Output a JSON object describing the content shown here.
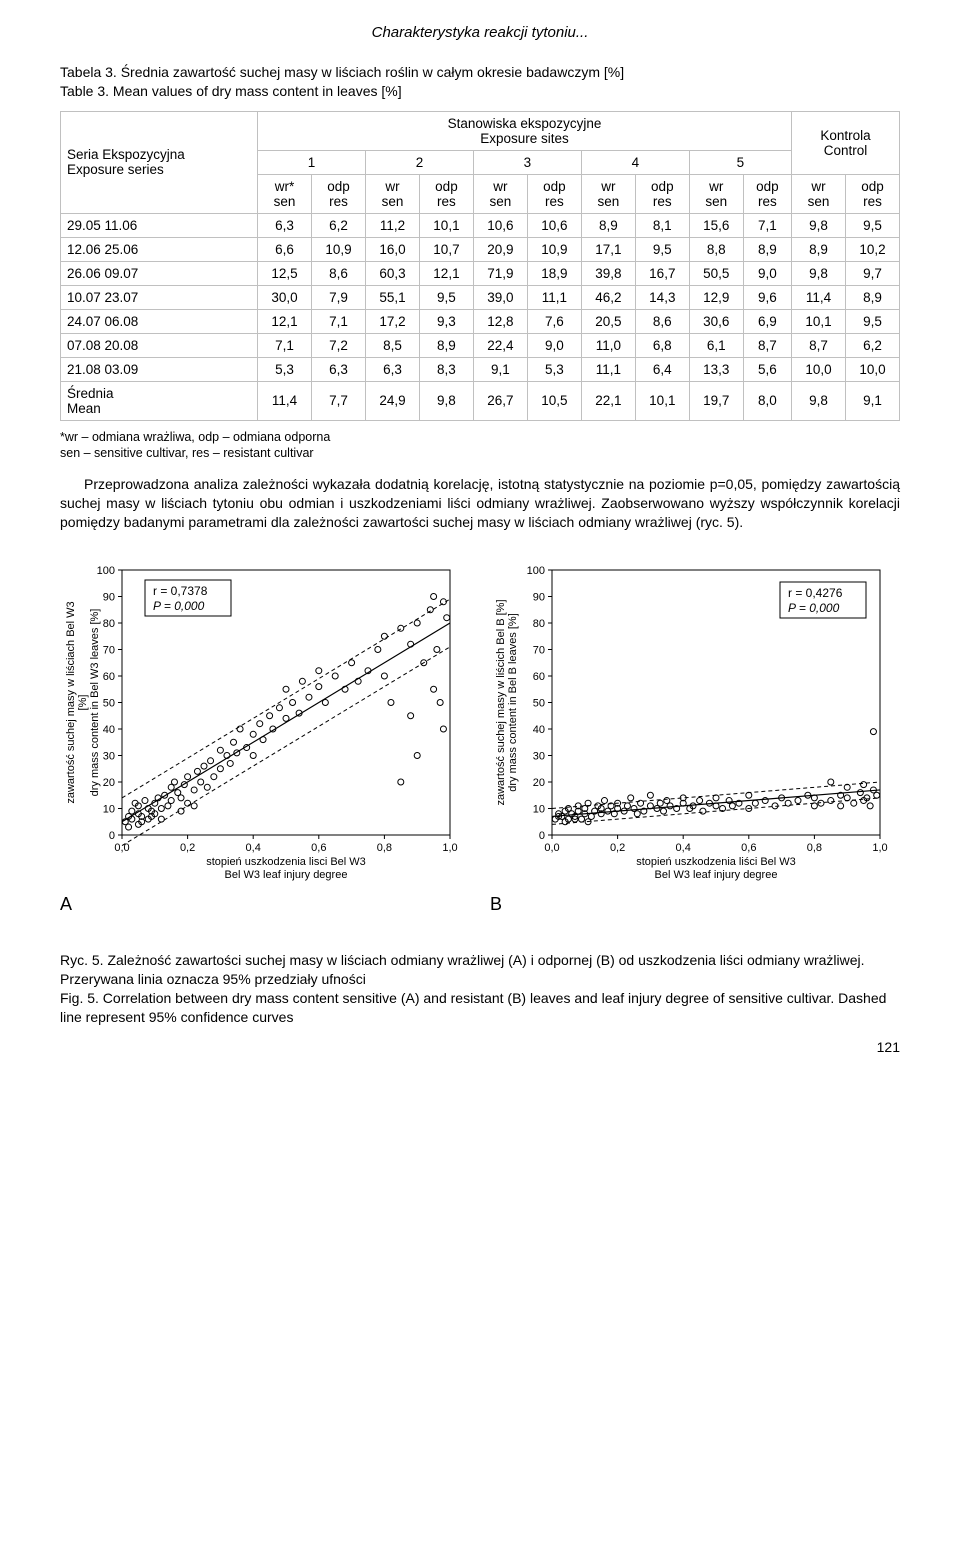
{
  "header": {
    "running_title": "Charakterystyka reakcji tytoniu..."
  },
  "table3": {
    "caption_pl": "Tabela 3. Średnia zawartość suchej masy w liściach roślin w całym okresie badawczym [%]",
    "caption_en": "Table 3. Mean values of dry mass content in leaves [%]",
    "rowhead_pl": "Seria Ekspozycyjna",
    "rowhead_en": "Exposure series",
    "tophead_pl": "Stanowiska ekspozycyjne",
    "tophead_en": "Exposure sites",
    "control_lbl_pl": "Kontrola",
    "control_lbl_en": "Control",
    "sites": [
      "1",
      "2",
      "3",
      "4",
      "5"
    ],
    "subhead_first": {
      "top": "wr*",
      "bot": "sen"
    },
    "subhead_wr": {
      "top": "wr",
      "bot": "sen"
    },
    "subhead_odp": {
      "top": "odp",
      "bot": "res"
    },
    "rows": [
      {
        "label": "29.05 11.06",
        "v": [
          "6,3",
          "6,2",
          "11,2",
          "10,1",
          "10,6",
          "10,6",
          "8,9",
          "8,1",
          "15,6",
          "7,1",
          "9,8",
          "9,5"
        ]
      },
      {
        "label": "12.06 25.06",
        "v": [
          "6,6",
          "10,9",
          "16,0",
          "10,7",
          "20,9",
          "10,9",
          "17,1",
          "9,5",
          "8,8",
          "8,9",
          "8,9",
          "10,2"
        ]
      },
      {
        "label": "26.06 09.07",
        "v": [
          "12,5",
          "8,6",
          "60,3",
          "12,1",
          "71,9",
          "18,9",
          "39,8",
          "16,7",
          "50,5",
          "9,0",
          "9,8",
          "9,7"
        ]
      },
      {
        "label": "10.07 23.07",
        "v": [
          "30,0",
          "7,9",
          "55,1",
          "9,5",
          "39,0",
          "11,1",
          "46,2",
          "14,3",
          "12,9",
          "9,6",
          "11,4",
          "8,9"
        ]
      },
      {
        "label": "24.07 06.08",
        "v": [
          "12,1",
          "7,1",
          "17,2",
          "9,3",
          "12,8",
          "7,6",
          "20,5",
          "8,6",
          "30,6",
          "6,9",
          "10,1",
          "9,5"
        ]
      },
      {
        "label": "07.08 20.08",
        "v": [
          "7,1",
          "7,2",
          "8,5",
          "8,9",
          "22,4",
          "9,0",
          "11,0",
          "6,8",
          "6,1",
          "8,7",
          "8,7",
          "6,2"
        ]
      },
      {
        "label": "21.08 03.09",
        "v": [
          "5,3",
          "6,3",
          "6,3",
          "8,3",
          "9,1",
          "5,3",
          "11,1",
          "6,4",
          "13,3",
          "5,6",
          "10,0",
          "10,0"
        ]
      }
    ],
    "mean_label_pl": "Średnia",
    "mean_label_en": "Mean",
    "mean_values": [
      "11,4",
      "7,7",
      "24,9",
      "9,8",
      "26,7",
      "10,5",
      "22,1",
      "10,1",
      "19,7",
      "8,0",
      "9,8",
      "9,1"
    ],
    "footnote_pl": "*wr – odmiana wrażliwa, odp – odmiana odporna",
    "footnote_en": "sen – sensitive cultivar, res – resistant cultivar"
  },
  "paragraph": {
    "text": "Przeprowadzona analiza zależności wykazała dodatnią korelację, istotną statystycznie na poziomie p=0,05, pomiędzy zawartością suchej masy w liściach tytoniu obu odmian i uszkodzeniami liści odmiany wrażliwej. Zaobserwowano wyższy współczynnik korelacji pomiędzy badanymi parametrami dla zależności zawartości suchej masy w liściach odmiany wrażliwej (ryc. 5)."
  },
  "chartA": {
    "type": "scatter",
    "panel_letter": "A",
    "box_text_r": "r = 0,7378",
    "box_text_p": "P = 0,000",
    "ylabel_pl": "zawartość suchej masy w liściach Bel W3\n[%]",
    "ylabel_en": "dry mass content in Bel W3 leaves [%]",
    "xlabel_pl": "stopień uszkodzenia lisci Bel W3",
    "xlabel_en": "Bel W3 leaf injury degree",
    "xlim": [
      0,
      1.0
    ],
    "ylim": [
      0,
      100
    ],
    "xticks": [
      "0,0",
      "0,2",
      "0,4",
      "0,6",
      "0,8",
      "1,0"
    ],
    "yticks": [
      "0",
      "10",
      "20",
      "30",
      "40",
      "50",
      "60",
      "70",
      "80",
      "90",
      "100"
    ],
    "background": "#ffffff",
    "axis_color": "#000000",
    "marker_color": "#000000",
    "marker_size": 3,
    "fit": {
      "slope": 75,
      "intercept": 5,
      "ci_offset": 9,
      "line_color": "#000000",
      "dash": "4,3"
    },
    "points": [
      [
        0.01,
        5
      ],
      [
        0.02,
        7
      ],
      [
        0.03,
        6
      ],
      [
        0.03,
        9
      ],
      [
        0.05,
        8
      ],
      [
        0.05,
        11
      ],
      [
        0.06,
        7
      ],
      [
        0.07,
        13
      ],
      [
        0.08,
        10
      ],
      [
        0.08,
        6
      ],
      [
        0.09,
        9
      ],
      [
        0.1,
        12
      ],
      [
        0.1,
        8
      ],
      [
        0.11,
        14
      ],
      [
        0.12,
        10
      ],
      [
        0.13,
        15
      ],
      [
        0.14,
        11
      ],
      [
        0.15,
        18
      ],
      [
        0.15,
        13
      ],
      [
        0.16,
        20
      ],
      [
        0.17,
        16
      ],
      [
        0.18,
        14
      ],
      [
        0.19,
        19
      ],
      [
        0.2,
        12
      ],
      [
        0.2,
        22
      ],
      [
        0.22,
        17
      ],
      [
        0.23,
        24
      ],
      [
        0.24,
        20
      ],
      [
        0.25,
        26
      ],
      [
        0.26,
        18
      ],
      [
        0.27,
        28
      ],
      [
        0.28,
        22
      ],
      [
        0.3,
        25
      ],
      [
        0.3,
        32
      ],
      [
        0.32,
        30
      ],
      [
        0.33,
        27
      ],
      [
        0.34,
        35
      ],
      [
        0.35,
        31
      ],
      [
        0.36,
        40
      ],
      [
        0.38,
        33
      ],
      [
        0.4,
        38
      ],
      [
        0.4,
        30
      ],
      [
        0.42,
        42
      ],
      [
        0.43,
        36
      ],
      [
        0.45,
        45
      ],
      [
        0.46,
        40
      ],
      [
        0.48,
        48
      ],
      [
        0.5,
        44
      ],
      [
        0.5,
        55
      ],
      [
        0.52,
        50
      ],
      [
        0.54,
        46
      ],
      [
        0.55,
        58
      ],
      [
        0.57,
        52
      ],
      [
        0.6,
        56
      ],
      [
        0.6,
        62
      ],
      [
        0.62,
        50
      ],
      [
        0.65,
        60
      ],
      [
        0.68,
        55
      ],
      [
        0.7,
        65
      ],
      [
        0.72,
        58
      ],
      [
        0.75,
        62
      ],
      [
        0.78,
        70
      ],
      [
        0.8,
        60
      ],
      [
        0.8,
        75
      ],
      [
        0.82,
        50
      ],
      [
        0.85,
        78
      ],
      [
        0.85,
        20
      ],
      [
        0.88,
        45
      ],
      [
        0.88,
        72
      ],
      [
        0.9,
        80
      ],
      [
        0.9,
        30
      ],
      [
        0.92,
        65
      ],
      [
        0.94,
        85
      ],
      [
        0.95,
        55
      ],
      [
        0.95,
        90
      ],
      [
        0.96,
        70
      ],
      [
        0.97,
        50
      ],
      [
        0.98,
        88
      ],
      [
        0.98,
        40
      ],
      [
        0.99,
        82
      ],
      [
        0.05,
        4
      ],
      [
        0.12,
        6
      ],
      [
        0.18,
        9
      ],
      [
        0.22,
        11
      ],
      [
        0.02,
        3
      ],
      [
        0.04,
        12
      ],
      [
        0.06,
        5
      ],
      [
        0.09,
        7
      ]
    ]
  },
  "chartB": {
    "type": "scatter",
    "panel_letter": "B",
    "box_text_r": "r = 0,4276",
    "box_text_p": "P = 0,000",
    "ylabel_pl": "zawartość suchej masy w liścich Bel B [%]",
    "ylabel_en": "dry mass content in Bel B leaves [%]",
    "xlabel_pl": "stopień uszkodzenia liści Bel W3",
    "xlabel_en": "Bel W3 leaf injury degree",
    "xlim": [
      0,
      1.0
    ],
    "ylim": [
      0,
      100
    ],
    "xticks": [
      "0,0",
      "0,2",
      "0,4",
      "0,6",
      "0,8",
      "1,0"
    ],
    "yticks": [
      "0",
      "10",
      "20",
      "30",
      "40",
      "50",
      "60",
      "70",
      "80",
      "90",
      "100"
    ],
    "background": "#ffffff",
    "axis_color": "#000000",
    "marker_color": "#000000",
    "marker_size": 3,
    "fit": {
      "slope": 10,
      "intercept": 7,
      "ci_offset": 3,
      "line_color": "#000000",
      "dash": "4,3"
    },
    "points": [
      [
        0.01,
        6
      ],
      [
        0.02,
        8
      ],
      [
        0.03,
        7
      ],
      [
        0.04,
        9
      ],
      [
        0.05,
        6
      ],
      [
        0.05,
        10
      ],
      [
        0.06,
        8
      ],
      [
        0.07,
        7
      ],
      [
        0.08,
        11
      ],
      [
        0.08,
        9
      ],
      [
        0.09,
        6
      ],
      [
        0.1,
        10
      ],
      [
        0.1,
        8
      ],
      [
        0.11,
        12
      ],
      [
        0.12,
        7
      ],
      [
        0.13,
        9
      ],
      [
        0.14,
        11
      ],
      [
        0.15,
        8
      ],
      [
        0.15,
        10
      ],
      [
        0.16,
        13
      ],
      [
        0.17,
        9
      ],
      [
        0.18,
        11
      ],
      [
        0.19,
        8
      ],
      [
        0.2,
        12
      ],
      [
        0.2,
        10
      ],
      [
        0.22,
        9
      ],
      [
        0.23,
        11
      ],
      [
        0.24,
        14
      ],
      [
        0.25,
        10
      ],
      [
        0.26,
        8
      ],
      [
        0.27,
        12
      ],
      [
        0.28,
        9
      ],
      [
        0.3,
        11
      ],
      [
        0.3,
        15
      ],
      [
        0.32,
        10
      ],
      [
        0.33,
        12
      ],
      [
        0.34,
        9
      ],
      [
        0.35,
        13
      ],
      [
        0.36,
        11
      ],
      [
        0.38,
        10
      ],
      [
        0.4,
        12
      ],
      [
        0.4,
        14
      ],
      [
        0.42,
        10
      ],
      [
        0.43,
        11
      ],
      [
        0.45,
        13
      ],
      [
        0.46,
        9
      ],
      [
        0.48,
        12
      ],
      [
        0.5,
        11
      ],
      [
        0.5,
        14
      ],
      [
        0.52,
        10
      ],
      [
        0.54,
        13
      ],
      [
        0.55,
        11
      ],
      [
        0.57,
        12
      ],
      [
        0.6,
        10
      ],
      [
        0.6,
        15
      ],
      [
        0.62,
        12
      ],
      [
        0.65,
        13
      ],
      [
        0.68,
        11
      ],
      [
        0.7,
        14
      ],
      [
        0.72,
        12
      ],
      [
        0.75,
        13
      ],
      [
        0.78,
        15
      ],
      [
        0.8,
        11
      ],
      [
        0.8,
        14
      ],
      [
        0.82,
        12
      ],
      [
        0.85,
        13
      ],
      [
        0.85,
        20
      ],
      [
        0.88,
        11
      ],
      [
        0.88,
        15
      ],
      [
        0.9,
        14
      ],
      [
        0.9,
        18
      ],
      [
        0.92,
        12
      ],
      [
        0.94,
        16
      ],
      [
        0.95,
        13
      ],
      [
        0.95,
        19
      ],
      [
        0.96,
        14
      ],
      [
        0.97,
        11
      ],
      [
        0.98,
        17
      ],
      [
        0.98,
        39
      ],
      [
        0.99,
        15
      ],
      [
        0.04,
        5
      ],
      [
        0.07,
        6
      ],
      [
        0.11,
        5
      ],
      [
        0.02,
        7
      ]
    ]
  },
  "fig5": {
    "caption_pl": "Ryc. 5. Zależność zawartości suchej masy w liściach odmiany wrażliwej (A) i odpornej (B) od uszkodzenia liści odmiany wrażliwej. Przerywana linia oznacza 95% przedziały ufności",
    "caption_en": "Fig. 5. Correlation between dry mass content sensitive (A) and resistant (B) leaves and leaf injury degree of sensitive cultivar. Dashed line represent 95% confidence curves"
  },
  "page_number": "121"
}
